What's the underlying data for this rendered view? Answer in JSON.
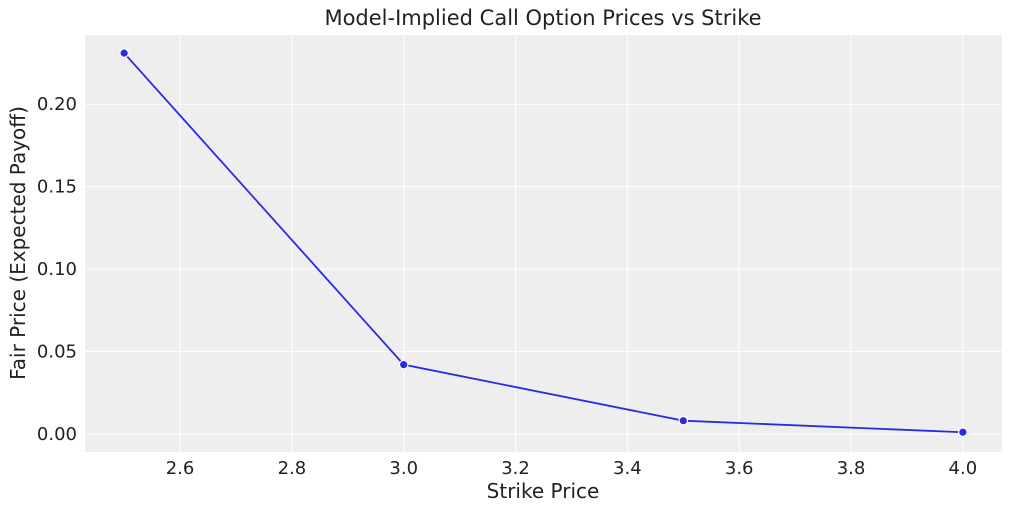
{
  "chart_data": {
    "type": "line",
    "title": "Model-Implied Call Option Prices vs Strike",
    "xlabel": "Strike Price",
    "ylabel": "Fair Price (Expected Payoff)",
    "x": [
      2.5,
      3.0,
      3.5,
      4.0
    ],
    "series": [
      {
        "values": [
          0.231,
          0.042,
          0.008,
          0.001
        ]
      }
    ],
    "xlim": [
      2.43,
      4.07
    ],
    "ylim": [
      -0.011,
      0.242
    ],
    "xticks": [
      "2.6",
      "2.8",
      "3.0",
      "3.2",
      "3.4",
      "3.6",
      "3.8",
      "4.0"
    ],
    "yticks": [
      "0.00",
      "0.05",
      "0.10",
      "0.15",
      "0.20"
    ],
    "xtick_values": [
      2.6,
      2.8,
      3.0,
      3.2,
      3.4,
      3.6,
      3.8,
      4.0
    ],
    "ytick_values": [
      0.0,
      0.05,
      0.1,
      0.15,
      0.2
    ],
    "grid": true,
    "line_color": "#2a2ae0",
    "marker_color": "#2a2ae0",
    "background_color": "#eeeeee",
    "grid_color": "#ffffff"
  }
}
